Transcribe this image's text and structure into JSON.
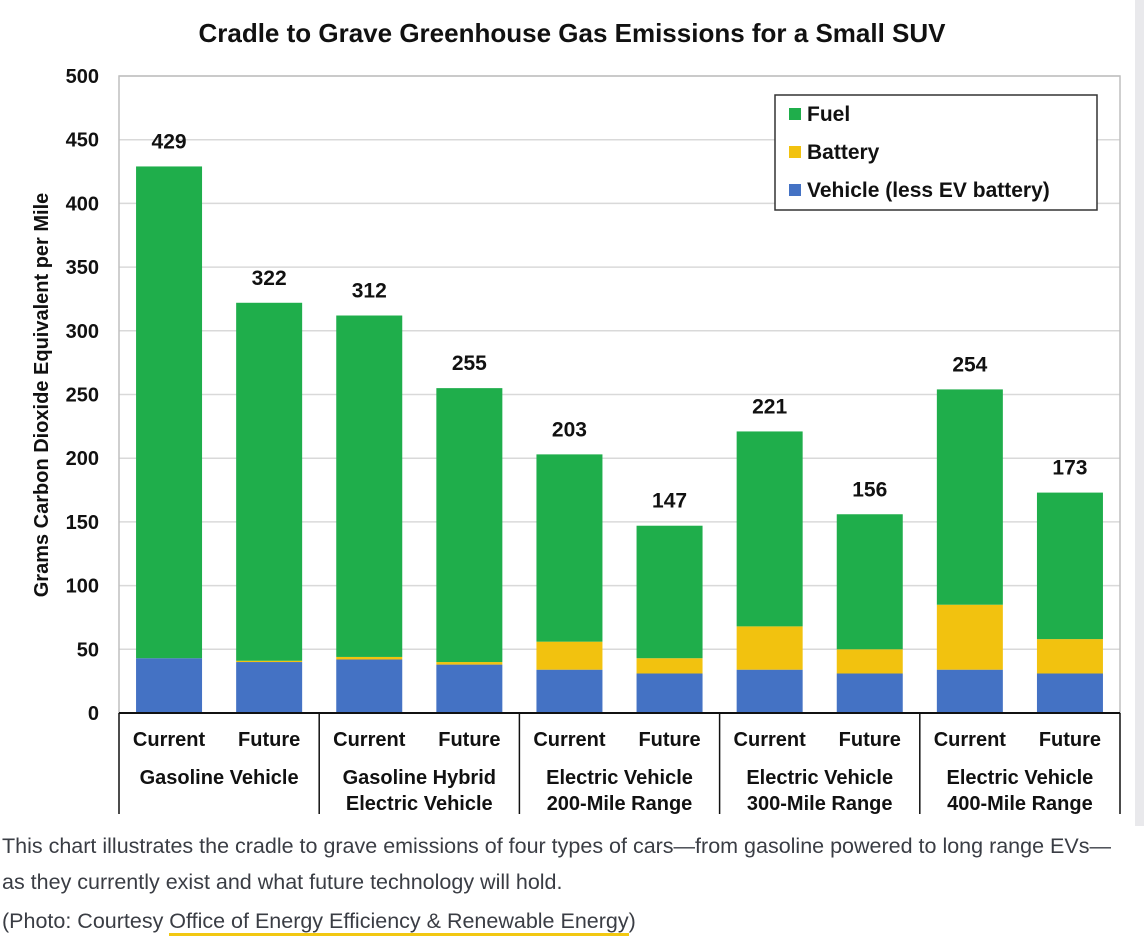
{
  "chart_data": {
    "type": "bar",
    "stacked": true,
    "title": "Cradle to Grave Greenhouse Gas Emissions for a Small SUV",
    "ylabel": "Grams Carbon Dioxide Equivalent per Mile",
    "ylim": [
      0,
      500
    ],
    "yticks": [
      0,
      50,
      100,
      150,
      200,
      250,
      300,
      350,
      400,
      450,
      500
    ],
    "grid": true,
    "legend_position": "top-right",
    "categories": [
      "Current",
      "Future",
      "Current",
      "Future",
      "Current",
      "Future",
      "Current",
      "Future",
      "Current",
      "Future"
    ],
    "groups": [
      {
        "label": [
          "Gasoline Vehicle"
        ],
        "span": 2
      },
      {
        "label": [
          "Gasoline Hybrid",
          "Electric Vehicle"
        ],
        "span": 2
      },
      {
        "label": [
          "Electric Vehicle",
          "200-Mile Range"
        ],
        "span": 2
      },
      {
        "label": [
          "Electric Vehicle",
          "300-Mile Range"
        ],
        "span": 2
      },
      {
        "label": [
          "Electric Vehicle",
          "400-Mile Range"
        ],
        "span": 2
      }
    ],
    "series": [
      {
        "name": "Vehicle (less EV battery)",
        "color": "#4472c4",
        "values": [
          43,
          40,
          42,
          38,
          34,
          31,
          34,
          31,
          34,
          31
        ]
      },
      {
        "name": "Battery",
        "color": "#f2c20f",
        "values": [
          0,
          1,
          2,
          2,
          22,
          12,
          34,
          19,
          51,
          27
        ]
      },
      {
        "name": "Fuel",
        "color": "#1fae4b",
        "values": [
          386,
          281,
          268,
          215,
          147,
          104,
          153,
          106,
          169,
          115
        ]
      }
    ],
    "legend_order": [
      "Fuel",
      "Battery",
      "Vehicle (less EV battery)"
    ],
    "totals": [
      429,
      322,
      312,
      255,
      203,
      147,
      221,
      156,
      254,
      173
    ]
  },
  "caption": {
    "text": "This chart illustrates the cradle to grave emissions of four types of cars—from gasoline powered to long range EVs—as they currently exist and what future technology will hold.",
    "credit_prefix": "(Photo: Courtesy ",
    "credit_link": "Office of Energy Efficiency & Renewable Energy",
    "credit_suffix": ")"
  }
}
